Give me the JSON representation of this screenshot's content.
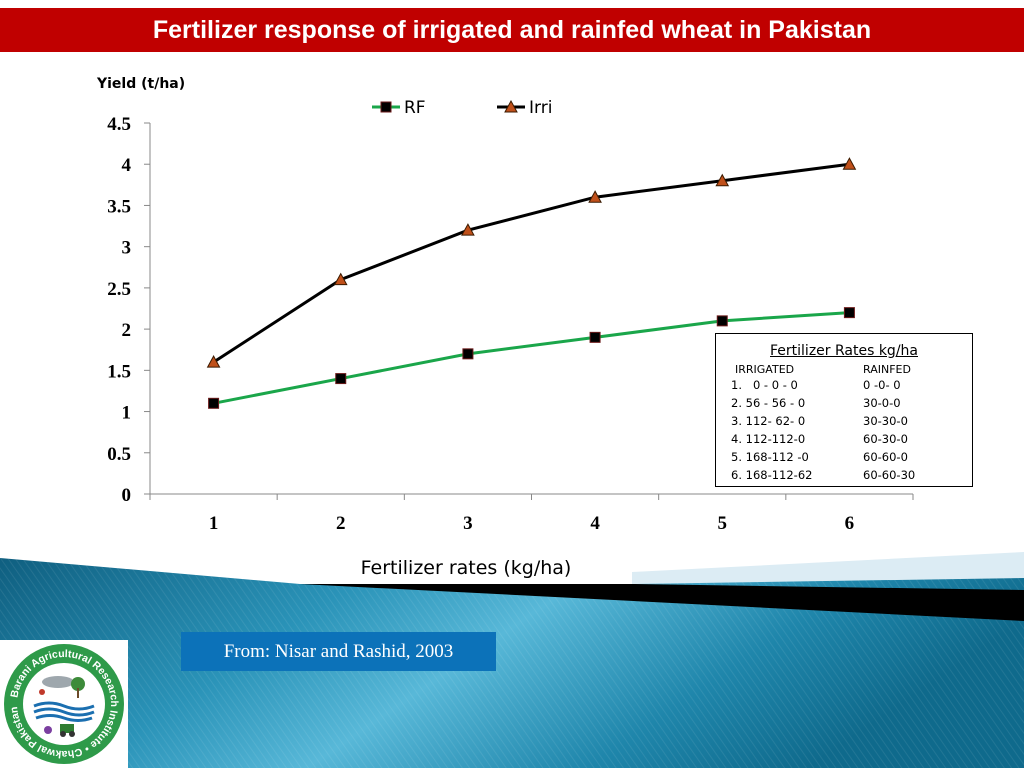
{
  "title": "Fertilizer response of irrigated and rainfed wheat in Pakistan",
  "source": "From: Nisar and Rashid, 2003",
  "logo": {
    "text": "Barani Agricultural Research Institute • Chakwal Pakistan •",
    "ring_color": "#2e9a49"
  },
  "rates_table": {
    "title": "Fertilizer Rates kg/ha",
    "headers": [
      "IRRIGATED",
      "RAINFED"
    ],
    "rows": [
      [
        "1.   0 - 0 - 0",
        "0 -0- 0"
      ],
      [
        "2. 56 - 56 - 0",
        "30-0-0"
      ],
      [
        "3. 112- 62- 0",
        "30-30-0"
      ],
      [
        "4. 112-112-0",
        "60-30-0"
      ],
      [
        "5. 168-112 -0",
        "60-60-0"
      ],
      [
        "6. 168-112-62",
        "60-60-30"
      ]
    ]
  },
  "chart_data": {
    "type": "line",
    "x": [
      1,
      2,
      3,
      4,
      5,
      6
    ],
    "x_tick_labels": [
      "1",
      "2",
      "3",
      "4",
      "5",
      "6"
    ],
    "y_tick_labels": [
      "0",
      "0.5",
      "1",
      "1.5",
      "2",
      "2.5",
      "3",
      "3.5",
      "4",
      "4.5"
    ],
    "ylim": [
      0,
      4.5
    ],
    "ylabel": "Yield (t/ha)",
    "xlabel": "Fertilizer rates (kg/ha)",
    "grid": false,
    "legend_position": "top",
    "series": [
      {
        "name": "RF",
        "values": [
          1.1,
          1.4,
          1.7,
          1.9,
          2.1,
          2.2
        ],
        "color": "#1aa64a",
        "marker": "square",
        "marker_color": "#000000"
      },
      {
        "name": "Irri",
        "values": [
          1.6,
          2.6,
          3.2,
          3.6,
          3.8,
          4.0
        ],
        "color": "#000000",
        "marker": "triangle",
        "marker_color": "#c0501a"
      }
    ]
  },
  "colors": {
    "title_bg": "#c00000",
    "source_bg": "#0c72b9",
    "footer_teal": "#2b9dbf"
  }
}
